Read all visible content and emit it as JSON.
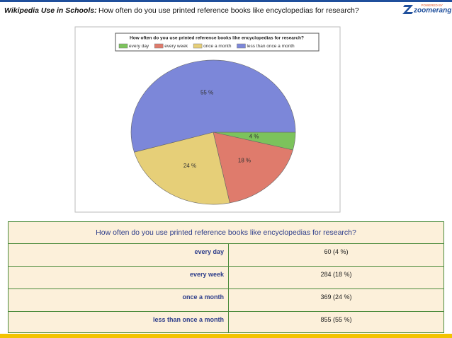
{
  "header": {
    "title": "Wikipedia Use in Schools:",
    "question": "How often do you use printed reference books like encyclopedias for research?"
  },
  "logo": {
    "powered": "POWERED BY",
    "name": "zoomerang"
  },
  "chart_data": {
    "type": "pie",
    "title": "How often do you use printed reference books like encyclopedias for research?",
    "categories": [
      "every day",
      "every week",
      "once a month",
      "less than once a month"
    ],
    "values": [
      4,
      18,
      24,
      55
    ],
    "value_labels": [
      "4 %",
      "18 %",
      "24 %",
      "55 %"
    ],
    "colors": [
      "#7cc35c",
      "#df7b6c",
      "#e6cf78",
      "#7c87d9"
    ]
  },
  "table": {
    "header": "How often do you use printed reference books like encyclopedias for research?",
    "rows": [
      [
        "every day",
        "60 (4 %)"
      ],
      [
        "every week",
        "284 (18 %)"
      ],
      [
        "once a month",
        "369 (24 %)"
      ],
      [
        "less than once a month",
        "855 (55 %)"
      ]
    ]
  }
}
